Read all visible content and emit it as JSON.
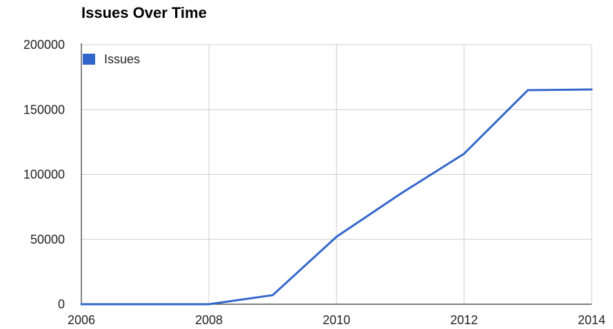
{
  "chart_data": {
    "type": "line",
    "title": "Issues Over Time",
    "xlabel": "",
    "ylabel": "",
    "x": [
      2006,
      2007,
      2008,
      2009,
      2010,
      2011,
      2012,
      2013,
      2014
    ],
    "series": [
      {
        "name": "Issues",
        "values": [
          0,
          0,
          0,
          7000,
          52000,
          85000,
          116000,
          165000,
          165500
        ]
      }
    ],
    "xlim": [
      2006,
      2014
    ],
    "ylim": [
      0,
      200000
    ],
    "x_ticks": [
      "2006",
      "2008",
      "2010",
      "2012",
      "2014"
    ],
    "y_ticks": [
      "0",
      "50000",
      "100000",
      "150000",
      "200000"
    ],
    "grid": true,
    "legend_position": "top-left",
    "colors": {
      "series": "#3366cc",
      "grid": "#cccccc",
      "axis": "#333333"
    }
  }
}
